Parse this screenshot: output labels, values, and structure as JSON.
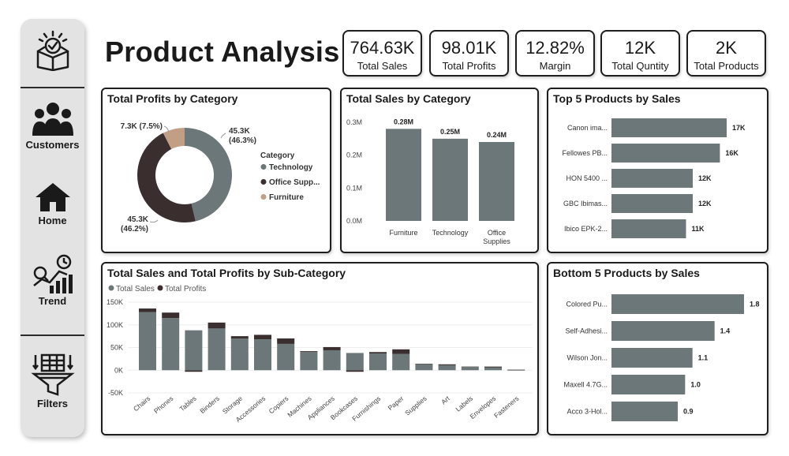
{
  "sidebar": {
    "items": [
      {
        "label": "",
        "icon": "box-check-icon"
      },
      {
        "label": "Customers",
        "icon": "users-icon"
      },
      {
        "label": "Home",
        "icon": "home-icon"
      },
      {
        "label": "Trend",
        "icon": "trend-icon"
      },
      {
        "label": "Filters",
        "icon": "filter-icon"
      }
    ]
  },
  "header": {
    "title": "Product Analysis"
  },
  "kpis": [
    {
      "value": "764.63K",
      "label": "Total Sales"
    },
    {
      "value": "98.01K",
      "label": "Total Profits"
    },
    {
      "value": "12.82%",
      "label": "Margin"
    },
    {
      "value": "12K",
      "label": "Total Quntity"
    },
    {
      "value": "2K",
      "label": "Total Products"
    }
  ],
  "colors": {
    "technology": "#6b7778",
    "office": "#3a2e2e",
    "furniture": "#c29f84",
    "bar": "#6b7778",
    "profit": "#3a2e2e"
  },
  "chart_data": [
    {
      "type": "pie",
      "title": "Total Profits by Category",
      "legend_title": "Category",
      "legend_position": "right",
      "categories": [
        "Technology",
        "Office Supp...",
        "Furniture"
      ],
      "values": [
        45.3,
        45.3,
        7.3
      ],
      "percents": [
        46.3,
        46.2,
        7.5
      ],
      "labels": [
        "45.3K (46.3%)",
        "45.3K (46.2%)",
        "7.3K (7.5%)"
      ]
    },
    {
      "type": "bar",
      "title": "Total Sales by Category",
      "categories": [
        "Furniture",
        "Technology",
        "Office Supplies"
      ],
      "values": [
        0.28,
        0.25,
        0.24
      ],
      "data_labels": [
        "0.28M",
        "0.25M",
        "0.24M"
      ],
      "yticks": [
        "0.0M",
        "0.1M",
        "0.2M",
        "0.3M"
      ],
      "ylim": [
        0,
        0.3
      ]
    },
    {
      "type": "bar",
      "orientation": "horizontal",
      "title": "Top 5 Products by Sales",
      "categories": [
        "Canon ima...",
        "Fellowes PB...",
        "HON 5400 ...",
        "GBC Ibimas...",
        "Ibico EPK-2..."
      ],
      "values": [
        17,
        16,
        12,
        12,
        11
      ],
      "data_labels": [
        "17K",
        "16K",
        "12K",
        "12K",
        "11K"
      ]
    },
    {
      "type": "bar",
      "title": "Total Sales and Total Profits by Sub-Category",
      "legend_position": "top-left",
      "categories": [
        "Chairs",
        "Phones",
        "Tables",
        "Binders",
        "Storage",
        "Accessories",
        "Copiers",
        "Machines",
        "Appliances",
        "Bookcases",
        "Furnishings",
        "Paper",
        "Supplies",
        "Art",
        "Labels",
        "Envelopes",
        "Fasteners"
      ],
      "series": [
        {
          "name": "Total Sales",
          "values": [
            128,
            115,
            88,
            92,
            70,
            68,
            58,
            40,
            44,
            38,
            37,
            36,
            14,
            11,
            7,
            6,
            1
          ]
        },
        {
          "name": "Total Profits",
          "values": [
            8,
            12,
            -4,
            13,
            5,
            10,
            12,
            2,
            7,
            -1,
            3,
            10,
            0,
            2,
            1,
            2,
            0
          ]
        }
      ],
      "yticks": [
        "-50K",
        "0K",
        "50K",
        "100K",
        "150K"
      ],
      "ylim": [
        -50,
        150
      ]
    },
    {
      "type": "bar",
      "orientation": "horizontal",
      "title": "Bottom 5 Products by Sales",
      "categories": [
        "Colored Pu...",
        "Self-Adhesi...",
        "Wilson Jon...",
        "Maxell 4.7G...",
        "Acco 3-Hol..."
      ],
      "values": [
        1.8,
        1.4,
        1.1,
        1.0,
        0.9
      ],
      "data_labels": [
        "1.8",
        "1.4",
        "1.1",
        "1.0",
        "0.9"
      ]
    }
  ]
}
